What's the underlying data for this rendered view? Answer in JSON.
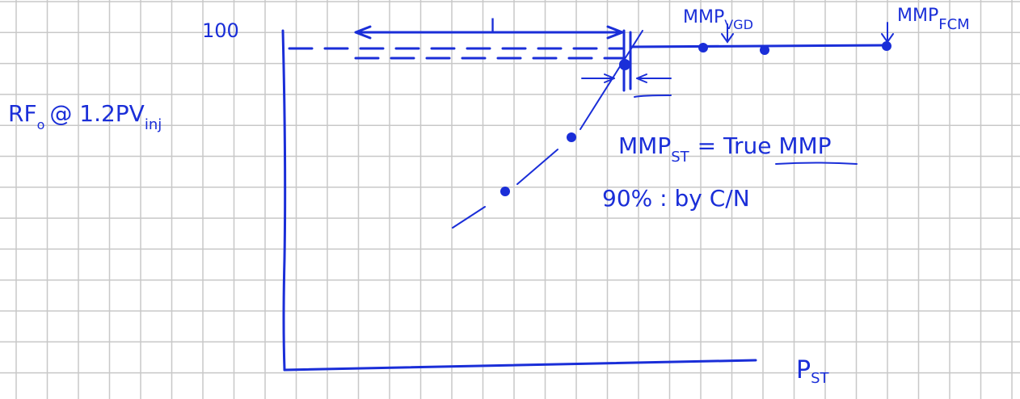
{
  "axis": {
    "y_top_label": "100",
    "x_label": {
      "text": "P",
      "sub": "ST"
    }
  },
  "annotations": {
    "interval": "I",
    "mmp_vgd": {
      "text": "MMP",
      "sub": "VGD"
    },
    "mmp_fcm": {
      "text": "MMP",
      "sub": "FCM"
    },
    "y_label": {
      "text": "RF",
      "sub": "o",
      "rest": "@ 1.2PV",
      "sub2": "inj"
    },
    "mmp_st": {
      "text": "MMP",
      "sub": "ST",
      "rest": "= True MMP"
    },
    "note": "90% : by C/N"
  }
}
